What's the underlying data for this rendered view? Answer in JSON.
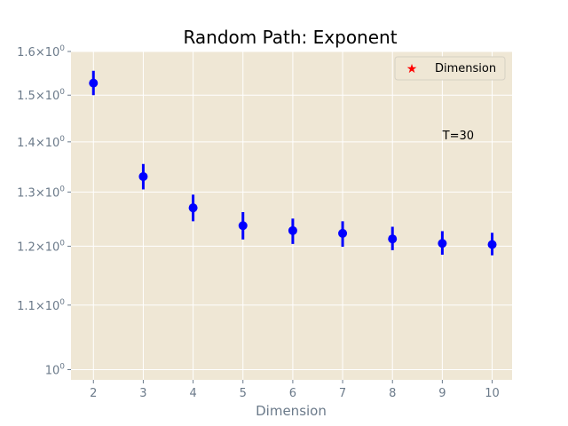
{
  "chart_data": {
    "type": "scatter",
    "title": "Random Path: Exponent",
    "xlabel": "Dimension",
    "ylabel": "",
    "yscale": "log",
    "grid": true,
    "x": [
      2,
      3,
      4,
      5,
      6,
      7,
      8,
      9,
      10
    ],
    "xticks": [
      2,
      3,
      4,
      5,
      6,
      7,
      8,
      9,
      10
    ],
    "xlim": [
      1.55,
      10.4
    ],
    "ylim": [
      0.985,
      1.6
    ],
    "yticks": [
      {
        "value": 1.0,
        "mantissa": "10",
        "exponent": "0"
      },
      {
        "value": 1.1,
        "mantissa": "1.1×10",
        "exponent": "0"
      },
      {
        "value": 1.2,
        "mantissa": "1.2×10",
        "exponent": "0"
      },
      {
        "value": 1.3,
        "mantissa": "1.3×10",
        "exponent": "0"
      },
      {
        "value": 1.4,
        "mantissa": "1.4×10",
        "exponent": "0"
      },
      {
        "value": 1.5,
        "mantissa": "1.5×10",
        "exponent": "0"
      },
      {
        "value": 1.6,
        "mantissa": "1.6×10",
        "exponent": "0"
      }
    ],
    "series": [
      {
        "name": "Dimension",
        "color": "#0000ff",
        "values": [
          1.527,
          1.33,
          1.27,
          1.237,
          1.228,
          1.223,
          1.213,
          1.205,
          1.203
        ],
        "err_low": [
          1.5,
          1.305,
          1.245,
          1.212,
          1.204,
          1.199,
          1.193,
          1.185,
          1.184
        ],
        "err_high": [
          1.555,
          1.355,
          1.295,
          1.262,
          1.25,
          1.245,
          1.235,
          1.227,
          1.224
        ]
      }
    ],
    "legend": {
      "placement": "top-right",
      "label": "Dimension",
      "marker_color": "#ff0000",
      "marker": "★"
    },
    "annotation": {
      "text": "T=30",
      "x": 9,
      "y": 1.405
    },
    "colors": {
      "plot_bg": "#efe7d5",
      "grid": "#ffffff",
      "tick": "#6b7a8a"
    }
  }
}
